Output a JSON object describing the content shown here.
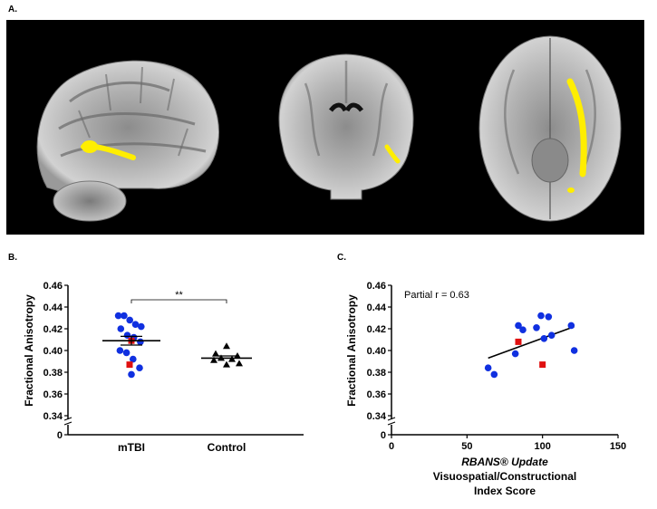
{
  "figure": {
    "panel_a_label": "A.",
    "panel_b_label": "B.",
    "panel_c_label": "C."
  },
  "brain_images": {
    "views": [
      "sagittal",
      "coronal",
      "axial"
    ],
    "highlight_color": "#ffee00",
    "background_color": "#000000"
  },
  "chart_data": [
    {
      "type": "scatter",
      "panel": "B",
      "xlabel": "",
      "ylabel": "Fractional Anisotropy",
      "categories": [
        "mTBI",
        "Control"
      ],
      "ylim": [
        0.34,
        0.46
      ],
      "yticks": [
        "0.46",
        "0.44",
        "0.42",
        "0.40",
        "0.38",
        "0.36",
        "0.34"
      ],
      "ytick_values": [
        0.46,
        0.44,
        0.42,
        0.4,
        0.38,
        0.36,
        0.34
      ],
      "y_zero_label": "0",
      "axis_break": true,
      "significance_label": "**",
      "series": [
        {
          "category": "mTBI",
          "marker": "circle",
          "color": "#1030e0",
          "values": [
            0.432,
            0.432,
            0.428,
            0.424,
            0.422,
            0.42,
            0.414,
            0.412,
            0.408,
            0.4,
            0.398,
            0.392,
            0.384,
            0.378
          ],
          "highlight_values": [
            0.409,
            0.387
          ],
          "highlight_color": "#e01010",
          "mean": 0.409,
          "sem": 0.004
        },
        {
          "category": "Control",
          "marker": "triangle",
          "color": "#000000",
          "values": [
            0.404,
            0.397,
            0.395,
            0.393,
            0.392,
            0.391,
            0.388,
            0.387
          ],
          "mean": 0.393,
          "sem": 0.002
        }
      ]
    },
    {
      "type": "scatter",
      "panel": "C",
      "ylabel": "Fractional Anisotropy",
      "xlabel_line1": "RBANS® Update",
      "xlabel_line2": "Visuospatial/Constructional",
      "xlabel_line3": "Index Score",
      "xlim": [
        0,
        150
      ],
      "xticks": [
        0,
        50,
        100,
        150
      ],
      "ylim": [
        0.34,
        0.46
      ],
      "yticks": [
        "0.46",
        "0.44",
        "0.42",
        "0.40",
        "0.38",
        "0.36",
        "0.34"
      ],
      "ytick_values": [
        0.46,
        0.44,
        0.42,
        0.4,
        0.38,
        0.36,
        0.34
      ],
      "y_zero_label": "0",
      "axis_break": true,
      "annotation": "Partial r = 0.63",
      "points": [
        {
          "x": 64,
          "y": 0.384
        },
        {
          "x": 68,
          "y": 0.378
        },
        {
          "x": 82,
          "y": 0.397
        },
        {
          "x": 84,
          "y": 0.423
        },
        {
          "x": 87,
          "y": 0.419
        },
        {
          "x": 96,
          "y": 0.421
        },
        {
          "x": 99,
          "y": 0.432
        },
        {
          "x": 101,
          "y": 0.411
        },
        {
          "x": 104,
          "y": 0.431
        },
        {
          "x": 106,
          "y": 0.414
        },
        {
          "x": 119,
          "y": 0.423
        },
        {
          "x": 121,
          "y": 0.4
        }
      ],
      "point_color": "#1030e0",
      "highlight_points": [
        {
          "x": 84,
          "y": 0.408
        },
        {
          "x": 100,
          "y": 0.387
        }
      ],
      "highlight_color": "#e01010",
      "fit_line": {
        "x1": 64,
        "y1": 0.393,
        "x2": 121,
        "y2": 0.422
      }
    }
  ]
}
